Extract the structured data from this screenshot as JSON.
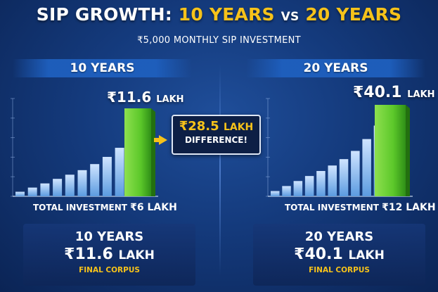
{
  "header": {
    "title_prefix": "SIP GROWTH:",
    "title_left": "10 YEARS",
    "title_vs": "VS",
    "title_right": "20 YEARS",
    "subtitle": "₹5,000 MONTHLY SIP INVESTMENT"
  },
  "difference": {
    "amount": "₹28.5",
    "unit": "LAKH",
    "label": "DIFFERENCE!"
  },
  "colors": {
    "accent": "#f6c21a",
    "bar_light": "#cfe4ff",
    "bar_blue": "#5b9be0",
    "final_bar": "#5cc82a"
  },
  "chart_data": [
    {
      "type": "bar",
      "title": "10 YEARS",
      "peak_label": "₹11.6",
      "peak_unit": "LAKH",
      "total_investment_label": "TOTAL INVESTMENT",
      "total_investment_value": "₹6 LAKH",
      "ylim": [
        0,
        11.6
      ],
      "values": [
        0.6,
        1.15,
        1.7,
        2.3,
        2.85,
        3.45,
        4.25,
        5.2,
        6.4,
        7.9,
        11.6
      ]
    },
    {
      "type": "bar",
      "title": "20 YEARS",
      "peak_label": "₹40.1",
      "peak_unit": "LAKH",
      "total_investment_label": "TOTAL INVESTMENT",
      "total_investment_value": "₹12 LAKH",
      "ylim": [
        0,
        40.1
      ],
      "values": [
        2.3,
        4.5,
        6.7,
        8.9,
        11.1,
        13.5,
        16.3,
        19.9,
        25.1,
        31.0,
        40.1
      ]
    }
  ],
  "summary": [
    {
      "years": "10 YEARS",
      "corpus": "₹11.6",
      "unit": "LAKH",
      "caption": "FINAL CORPUS"
    },
    {
      "years": "20 YEARS",
      "corpus": "₹40.1",
      "unit": "LAKH",
      "caption": "FINAL CORPUS"
    }
  ]
}
